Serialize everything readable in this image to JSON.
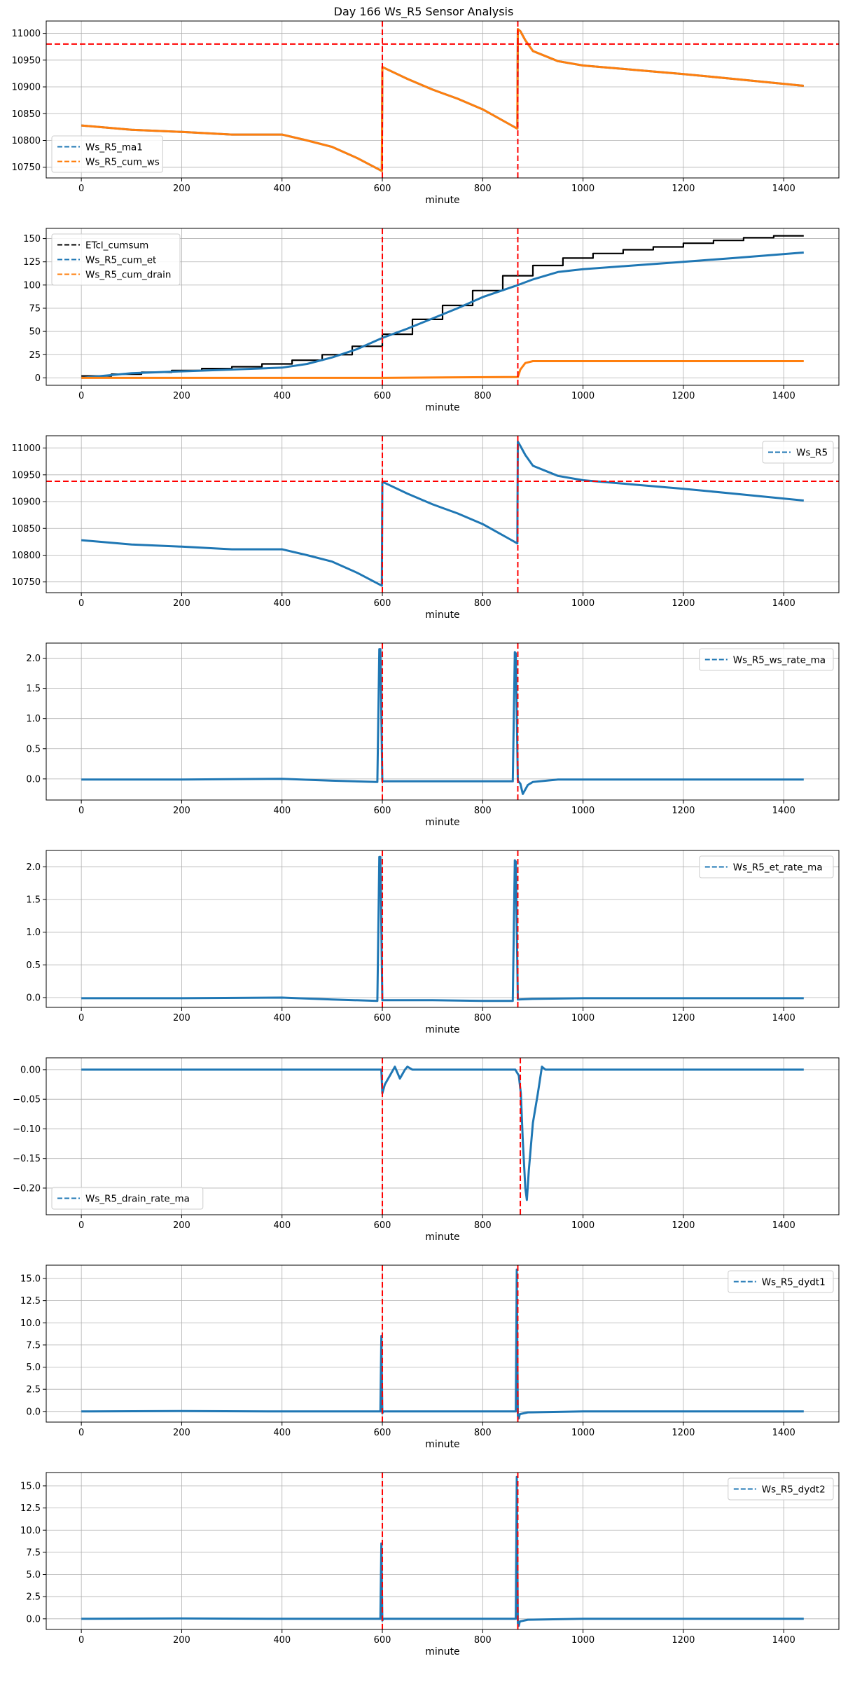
{
  "figure_title": "Day 166 Ws_R5 Sensor Analysis",
  "colors": {
    "blue": "#1f77b4",
    "orange": "#ff7f0e",
    "black": "#000000",
    "red": "#ff0000",
    "grid": "#b0b0b0"
  },
  "chart_data": [
    {
      "type": "line",
      "xlabel": "minute",
      "xlim": [
        -70,
        1510
      ],
      "ylim": [
        10730,
        11023
      ],
      "yticks": [
        10750,
        10800,
        10850,
        10900,
        10950,
        11000
      ],
      "legend_loc": "lower-left",
      "vlines": [
        600,
        870
      ],
      "hline": 10980,
      "series": [
        {
          "name": "Ws_R5_ma1",
          "color": "#1f77b4",
          "x": [
            0,
            100,
            200,
            300,
            400,
            450,
            500,
            550,
            599,
            600,
            650,
            700,
            750,
            800,
            850,
            869,
            870,
            875,
            885,
            900,
            950,
            1000,
            1100,
            1200,
            1300,
            1440
          ],
          "y": [
            10828,
            10820,
            10816,
            10811,
            10811,
            10800,
            10788,
            10767,
            10743,
            10937,
            10915,
            10895,
            10878,
            10858,
            10832,
            10822,
            11008,
            11004,
            10987,
            10967,
            10948,
            10940,
            10932,
            10924,
            10915,
            10902
          ]
        },
        {
          "name": "Ws_R5_cum_ws",
          "color": "#ff7f0e",
          "x": [
            0,
            100,
            200,
            300,
            400,
            450,
            500,
            550,
            599,
            600,
            650,
            700,
            750,
            800,
            850,
            869,
            870,
            875,
            885,
            900,
            950,
            1000,
            1100,
            1200,
            1300,
            1440
          ],
          "y": [
            10828,
            10820,
            10816,
            10811,
            10811,
            10800,
            10788,
            10767,
            10743,
            10937,
            10915,
            10895,
            10878,
            10858,
            10832,
            10822,
            11008,
            11004,
            10987,
            10967,
            10948,
            10940,
            10932,
            10924,
            10915,
            10902
          ]
        }
      ]
    },
    {
      "type": "line",
      "xlabel": "minute",
      "xlim": [
        -70,
        1510
      ],
      "ylim": [
        -8,
        161
      ],
      "yticks": [
        0,
        25,
        50,
        75,
        100,
        125,
        150
      ],
      "legend_loc": "upper-left",
      "vlines": [
        600,
        870
      ],
      "series": [
        {
          "name": "ETcl_cumsum",
          "color": "#000000",
          "step": true,
          "x": [
            0,
            60,
            120,
            180,
            240,
            300,
            360,
            420,
            480,
            540,
            600,
            660,
            720,
            780,
            840,
            900,
            960,
            1020,
            1080,
            1140,
            1200,
            1260,
            1320,
            1380,
            1440
          ],
          "y": [
            2,
            4,
            6,
            8,
            10,
            12,
            15,
            19,
            25,
            34,
            47,
            63,
            78,
            94,
            110,
            121,
            129,
            134,
            138,
            141,
            145,
            148,
            151,
            153,
            153
          ]
        },
        {
          "name": "Ws_R5_cum_et",
          "color": "#1f77b4",
          "x": [
            0,
            100,
            200,
            300,
            400,
            450,
            500,
            550,
            600,
            650,
            700,
            750,
            800,
            870,
            900,
            950,
            1000,
            1100,
            1200,
            1300,
            1440
          ],
          "y": [
            0,
            5,
            7,
            9,
            11,
            15,
            22,
            31,
            43,
            53,
            64,
            75,
            87,
            100,
            106,
            114,
            117,
            121,
            125,
            129,
            135
          ]
        },
        {
          "name": "Ws_R5_cum_drain",
          "color": "#ff7f0e",
          "x": [
            0,
            600,
            870,
            875,
            885,
            900,
            1000,
            1440
          ],
          "y": [
            0,
            0,
            1,
            9,
            16,
            18,
            18,
            18
          ]
        }
      ]
    },
    {
      "type": "line",
      "xlabel": "minute",
      "xlim": [
        -70,
        1510
      ],
      "ylim": [
        10730,
        11023
      ],
      "yticks": [
        10750,
        10800,
        10850,
        10900,
        10950,
        11000
      ],
      "legend_loc": "upper-right",
      "vlines": [
        600,
        870
      ],
      "hline": 10938,
      "series": [
        {
          "name": "Ws_R5",
          "color": "#1f77b4",
          "x": [
            0,
            100,
            200,
            300,
            400,
            450,
            500,
            550,
            599,
            600,
            650,
            700,
            750,
            800,
            850,
            869,
            870,
            875,
            885,
            900,
            950,
            1000,
            1100,
            1200,
            1300,
            1440
          ],
          "y": [
            10828,
            10820,
            10816,
            10811,
            10811,
            10800,
            10788,
            10767,
            10743,
            10937,
            10915,
            10895,
            10878,
            10858,
            10832,
            10822,
            11012,
            11004,
            10987,
            10967,
            10948,
            10940,
            10932,
            10924,
            10915,
            10902
          ]
        }
      ]
    },
    {
      "type": "line",
      "xlabel": "minute",
      "xlim": [
        -70,
        1510
      ],
      "ylim": [
        -0.35,
        2.25
      ],
      "yticks": [
        0.0,
        0.5,
        1.0,
        1.5,
        2.0
      ],
      "ytick_labels": [
        "0.0",
        "0.5",
        "1.0",
        "1.5",
        "2.0"
      ],
      "legend_loc": "upper-right",
      "vlines": [
        600,
        870
      ],
      "series": [
        {
          "name": "Ws_R5_ws_rate_ma",
          "color": "#1f77b4",
          "x": [
            0,
            200,
            400,
            500,
            590,
            594,
            596,
            600,
            610,
            700,
            800,
            860,
            864,
            866,
            870,
            875,
            880,
            890,
            900,
            950,
            1000,
            1200,
            1440
          ],
          "y": [
            -0.01,
            -0.01,
            0.0,
            -0.03,
            -0.05,
            2.15,
            2.15,
            -0.04,
            -0.04,
            -0.04,
            -0.04,
            -0.04,
            2.1,
            2.08,
            -0.03,
            -0.08,
            -0.25,
            -0.1,
            -0.05,
            -0.01,
            -0.01,
            -0.01,
            -0.01
          ]
        }
      ]
    },
    {
      "type": "line",
      "xlabel": "minute",
      "xlim": [
        -70,
        1510
      ],
      "ylim": [
        -0.15,
        2.25
      ],
      "yticks": [
        0.0,
        0.5,
        1.0,
        1.5,
        2.0
      ],
      "ytick_labels": [
        "0.0",
        "0.5",
        "1.0",
        "1.5",
        "2.0"
      ],
      "legend_loc": "upper-right",
      "vlines": [
        600,
        870
      ],
      "series": [
        {
          "name": "Ws_R5_et_rate_ma",
          "color": "#1f77b4",
          "x": [
            0,
            200,
            400,
            500,
            590,
            594,
            596,
            600,
            700,
            800,
            860,
            864,
            866,
            870,
            900,
            1000,
            1200,
            1440
          ],
          "y": [
            -0.01,
            -0.01,
            0.0,
            -0.03,
            -0.05,
            2.15,
            2.15,
            -0.04,
            -0.04,
            -0.05,
            -0.05,
            2.1,
            2.08,
            -0.03,
            -0.02,
            -0.01,
            -0.01,
            -0.01
          ]
        }
      ]
    },
    {
      "type": "line",
      "xlabel": "minute",
      "xlim": [
        -70,
        1510
      ],
      "ylim": [
        -0.245,
        0.02
      ],
      "yticks": [
        0.0,
        -0.05,
        -0.1,
        -0.15,
        -0.2
      ],
      "ytick_labels": [
        "0.00",
        "−0.05",
        "−0.10",
        "−0.15",
        "−0.20"
      ],
      "legend_loc": "lower-left",
      "vlines": [
        600,
        875
      ],
      "series": [
        {
          "name": "Ws_R5_drain_rate_ma",
          "color": "#1f77b4",
          "x": [
            0,
            598,
            600,
            605,
            615,
            625,
            635,
            645,
            650,
            660,
            865,
            872,
            876,
            880,
            885,
            888,
            892,
            900,
            910,
            918,
            925,
            1440
          ],
          "y": [
            0,
            0,
            -0.04,
            -0.025,
            -0.01,
            0.005,
            -0.015,
            0.0,
            0.005,
            0.0,
            0.0,
            -0.01,
            -0.04,
            -0.12,
            -0.2,
            -0.22,
            -0.17,
            -0.09,
            -0.04,
            0.005,
            0.0,
            0.0
          ]
        }
      ]
    },
    {
      "type": "line",
      "xlabel": "minute",
      "xlim": [
        -70,
        1510
      ],
      "ylim": [
        -1.2,
        16.5
      ],
      "yticks": [
        0.0,
        2.5,
        5.0,
        7.5,
        10.0,
        12.5,
        15.0
      ],
      "ytick_labels": [
        "0.0",
        "2.5",
        "5.0",
        "7.5",
        "10.0",
        "12.5",
        "15.0"
      ],
      "legend_loc": "upper-right",
      "vlines": [
        600,
        870
      ],
      "series": [
        {
          "name": "Ws_R5_dydt1",
          "color": "#1f77b4",
          "x": [
            0,
            200,
            400,
            596,
            598,
            600,
            602,
            700,
            866,
            868,
            870,
            872,
            874,
            890,
            1000,
            1440
          ],
          "y": [
            0.0,
            0.05,
            0.0,
            0.0,
            8.5,
            -0.2,
            0.0,
            0.0,
            0.0,
            16.0,
            -0.5,
            -0.8,
            -0.3,
            -0.1,
            0.0,
            0.0
          ]
        }
      ]
    },
    {
      "type": "line",
      "xlabel": "minute",
      "xlim": [
        -70,
        1510
      ],
      "ylim": [
        -1.2,
        16.5
      ],
      "yticks": [
        0.0,
        2.5,
        5.0,
        7.5,
        10.0,
        12.5,
        15.0
      ],
      "ytick_labels": [
        "0.0",
        "2.5",
        "5.0",
        "7.5",
        "10.0",
        "12.5",
        "15.0"
      ],
      "legend_loc": "upper-right",
      "vlines": [
        600,
        870
      ],
      "series": [
        {
          "name": "Ws_R5_dydt2",
          "color": "#1f77b4",
          "x": [
            0,
            200,
            400,
            596,
            598,
            600,
            602,
            700,
            866,
            868,
            870,
            872,
            874,
            890,
            1000,
            1440
          ],
          "y": [
            0.0,
            0.05,
            0.0,
            0.0,
            8.5,
            -0.2,
            0.0,
            0.0,
            0.0,
            16.0,
            -0.5,
            -0.8,
            -0.3,
            -0.1,
            0.0,
            0.0
          ]
        }
      ]
    }
  ]
}
